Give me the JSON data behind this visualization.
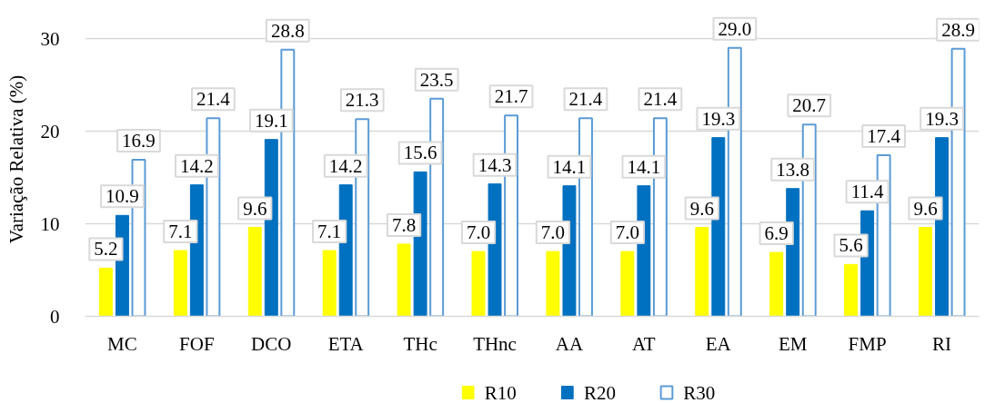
{
  "chart_data": {
    "type": "bar",
    "ylabel": "Variação Relativa (%)",
    "categories": [
      "MC",
      "FOF",
      "DCO",
      "ETA",
      "THc",
      "THnc",
      "AA",
      "AT",
      "EA",
      "EM",
      "FMP",
      "RI"
    ],
    "series": [
      {
        "name": "R10",
        "color": "#ffff00",
        "values": [
          5.2,
          7.1,
          9.6,
          7.1,
          7.8,
          7.0,
          7.0,
          7.0,
          9.6,
          6.9,
          5.6,
          9.6
        ],
        "value_labels": [
          "5.2",
          "7.1",
          "9.6",
          "7.1",
          "7.8",
          "7.0",
          "7.0",
          "7.0",
          "9.6",
          "6.9",
          "5.6",
          "9.6"
        ]
      },
      {
        "name": "R20",
        "color": "#0070c0",
        "values": [
          10.9,
          14.2,
          19.1,
          14.2,
          15.6,
          14.3,
          14.1,
          14.1,
          19.3,
          13.8,
          11.4,
          19.3
        ],
        "value_labels": [
          "10.9",
          "14.2",
          "19.1",
          "14.2",
          "15.6",
          "14.3",
          "14.1",
          "14.1",
          "19.3",
          "13.8",
          "11.4",
          "19.3"
        ]
      },
      {
        "name": "R30",
        "color": "#5b9bd5",
        "values": [
          16.9,
          21.4,
          28.8,
          21.3,
          23.5,
          21.7,
          21.4,
          21.4,
          29.0,
          20.7,
          17.4,
          28.9
        ],
        "value_labels": [
          "16.9",
          "21.4",
          "28.8",
          "21.3",
          "23.5",
          "21.7",
          "21.4",
          "21.4",
          "29.0",
          "20.7",
          "17.4",
          "28.9"
        ]
      }
    ],
    "ylim": [
      0,
      30
    ],
    "yticks": [
      0,
      10,
      20,
      30
    ],
    "grid": "y",
    "legend": "bottom"
  }
}
